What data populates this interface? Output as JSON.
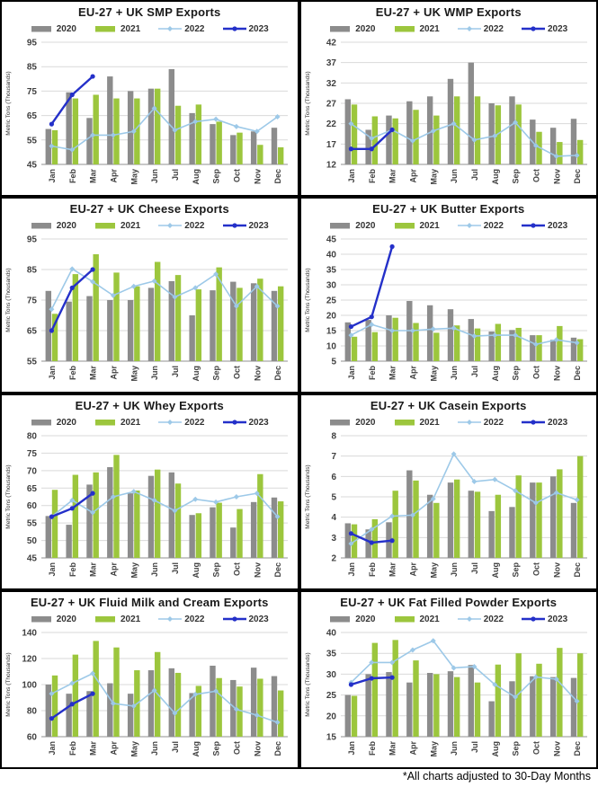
{
  "footer": {
    "note": "*All charts adjusted to 30-Day Months"
  },
  "colors": {
    "y2020": "#8C8C8C",
    "y2021": "#9CC63D",
    "y2022": "#9DC9E8",
    "y2023": "#2430C9",
    "grid": "#D9D9D9",
    "axis": "#A6A6A6",
    "text": "#404040",
    "title": "#1A1A1A"
  },
  "months": [
    "Jan",
    "Feb",
    "Mar",
    "Apr",
    "May",
    "Jun",
    "Jul",
    "Aug",
    "Sep",
    "Oct",
    "Nov",
    "Dec"
  ],
  "chart_data": [
    {
      "id": "smp",
      "type": "combo-bar-line",
      "title": "EU-27 + UK SMP Exports",
      "ylabel": "Metric Tons (Thousands)",
      "ylim": [
        45,
        95
      ],
      "ystep": 10,
      "grid": true,
      "legend_position": "top",
      "series": [
        {
          "name": "2020",
          "style": "bar",
          "color_key": "y2020",
          "values": [
            59.5,
            74.5,
            64,
            81,
            75,
            76,
            84,
            66,
            61.5,
            57,
            58.5,
            60
          ]
        },
        {
          "name": "2021",
          "style": "bar",
          "color_key": "y2021",
          "values": [
            59,
            72,
            73.5,
            72,
            72,
            76,
            69,
            69.5,
            62.5,
            58,
            53,
            52
          ]
        },
        {
          "name": "2022",
          "style": "line",
          "marker": "diamond",
          "color_key": "y2022",
          "values": [
            52.5,
            51,
            57,
            57,
            58.5,
            68,
            59,
            62.5,
            63.5,
            60.5,
            58.5,
            64.5
          ]
        },
        {
          "name": "2023",
          "style": "line",
          "marker": "circle",
          "color_key": "y2023",
          "values": [
            61.5,
            73.5,
            81,
            null,
            null,
            null,
            null,
            null,
            null,
            null,
            null,
            null
          ]
        }
      ]
    },
    {
      "id": "wmp",
      "type": "combo-bar-line",
      "title": "EU-27 + UK WMP Exports",
      "ylabel": "Metric Tons (Thousands)",
      "ylim": [
        12,
        42
      ],
      "ystep": 5,
      "grid": true,
      "legend_position": "top",
      "series": [
        {
          "name": "2020",
          "style": "bar",
          "color_key": "y2020",
          "values": [
            28,
            20.5,
            24,
            27.5,
            28.7,
            33,
            37,
            27,
            28.7,
            23,
            21,
            23.2
          ]
        },
        {
          "name": "2021",
          "style": "bar",
          "color_key": "y2021",
          "values": [
            26.7,
            23.8,
            23.3,
            25.4,
            24,
            28.7,
            28.7,
            26.5,
            26.7,
            20,
            17.5,
            18
          ]
        },
        {
          "name": "2022",
          "style": "line",
          "marker": "diamond",
          "color_key": "y2022",
          "values": [
            22,
            18.4,
            20.5,
            17.8,
            20.2,
            22,
            18,
            19,
            22.3,
            16.6,
            14,
            14.2
          ]
        },
        {
          "name": "2023",
          "style": "line",
          "marker": "circle",
          "color_key": "y2023",
          "values": [
            15.8,
            15.8,
            20.5,
            null,
            null,
            null,
            null,
            null,
            null,
            null,
            null,
            null
          ]
        }
      ]
    },
    {
      "id": "cheese",
      "type": "combo-bar-line",
      "title": "EU-27 + UK Cheese Exports",
      "ylabel": "Metric Tons (Thousands)",
      "ylim": [
        55,
        95
      ],
      "ystep": 10,
      "grid": true,
      "legend_position": "top",
      "series": [
        {
          "name": "2020",
          "style": "bar",
          "color_key": "y2020",
          "values": [
            78,
            74.5,
            76.3,
            75,
            75,
            79,
            81.2,
            70,
            78.2,
            81,
            80.5,
            78
          ]
        },
        {
          "name": "2021",
          "style": "bar",
          "color_key": "y2021",
          "values": [
            70.5,
            83.5,
            90,
            84,
            79.5,
            87.5,
            83.2,
            78.5,
            85.7,
            79,
            82,
            79.5
          ]
        },
        {
          "name": "2022",
          "style": "line",
          "marker": "diamond",
          "color_key": "y2022",
          "values": [
            72,
            85.2,
            81,
            76.5,
            79.5,
            81.2,
            76,
            79,
            83.5,
            73,
            79.5,
            73
          ]
        },
        {
          "name": "2023",
          "style": "line",
          "marker": "circle",
          "color_key": "y2023",
          "values": [
            65,
            79,
            85,
            null,
            null,
            null,
            null,
            null,
            null,
            null,
            null,
            null
          ]
        }
      ]
    },
    {
      "id": "butter",
      "type": "combo-bar-line",
      "title": "EU-27 + UK Butter Exports",
      "ylabel": "Metric Tons (Thousands)",
      "ylim": [
        5,
        45
      ],
      "ystep": 5,
      "grid": true,
      "legend_position": "top",
      "series": [
        {
          "name": "2020",
          "style": "bar",
          "color_key": "y2020",
          "values": [
            17.7,
            18.5,
            20,
            24.7,
            23.3,
            22,
            18.8,
            14.7,
            15.2,
            13.5,
            12,
            12.7
          ]
        },
        {
          "name": "2021",
          "style": "bar",
          "color_key": "y2021",
          "values": [
            13,
            14.5,
            19.2,
            17.5,
            14.3,
            16.7,
            15.7,
            17.2,
            15.9,
            13.5,
            16.5,
            12.2
          ]
        },
        {
          "name": "2022",
          "style": "line",
          "marker": "diamond",
          "color_key": "y2022",
          "values": [
            13.5,
            17,
            15,
            15,
            15.5,
            15.8,
            13.2,
            13.5,
            13.5,
            10.5,
            12,
            11
          ]
        },
        {
          "name": "2023",
          "style": "line",
          "marker": "circle",
          "color_key": "y2023",
          "values": [
            16.3,
            19.5,
            42.5,
            null,
            null,
            null,
            null,
            null,
            null,
            null,
            null,
            null
          ]
        }
      ]
    },
    {
      "id": "whey",
      "type": "combo-bar-line",
      "title": "EU-27 + UK Whey Exports",
      "ylabel": "Metric Tons (Thousands)",
      "ylim": [
        45,
        80
      ],
      "ystep": 5,
      "grid": true,
      "legend_position": "top",
      "series": [
        {
          "name": "2020",
          "style": "bar",
          "color_key": "y2020",
          "values": [
            57,
            54.5,
            66,
            71,
            63.5,
            68.5,
            69.5,
            57.3,
            59.5,
            53.7,
            61,
            62.3
          ]
        },
        {
          "name": "2021",
          "style": "bar",
          "color_key": "y2021",
          "values": [
            64.5,
            68.8,
            69.5,
            74.5,
            64.3,
            70.3,
            66.3,
            57.8,
            60.8,
            59,
            69,
            61.2
          ]
        },
        {
          "name": "2022",
          "style": "line",
          "marker": "diamond",
          "color_key": "y2022",
          "values": [
            56.8,
            61.5,
            58,
            62.5,
            64,
            61.5,
            58.5,
            61.8,
            61,
            62.5,
            63.5,
            56.8
          ]
        },
        {
          "name": "2023",
          "style": "line",
          "marker": "circle",
          "color_key": "y2023",
          "values": [
            56.8,
            59.2,
            63.5,
            null,
            null,
            null,
            null,
            null,
            null,
            null,
            null,
            null
          ]
        }
      ]
    },
    {
      "id": "casein",
      "type": "combo-bar-line",
      "title": "EU-27 + UK Casein Exports",
      "ylabel": "Metric Tons (Thousands)",
      "ylim": [
        2,
        8
      ],
      "ystep": 1,
      "grid": true,
      "legend_position": "top",
      "series": [
        {
          "name": "2020",
          "style": "bar",
          "color_key": "y2020",
          "values": [
            3.7,
            3.4,
            3.75,
            6.3,
            5.1,
            5.7,
            5.3,
            4.3,
            4.5,
            5.7,
            6.0,
            4.7
          ]
        },
        {
          "name": "2021",
          "style": "bar",
          "color_key": "y2021",
          "values": [
            3.65,
            3.9,
            5.3,
            5.8,
            4.7,
            5.85,
            5.25,
            5.1,
            6.05,
            5.7,
            6.35,
            7.0
          ]
        },
        {
          "name": "2022",
          "style": "line",
          "marker": "diamond",
          "color_key": "y2022",
          "values": [
            2.7,
            3.4,
            4.05,
            4.1,
            4.9,
            7.1,
            5.75,
            5.85,
            5.3,
            4.7,
            5.2,
            4.85
          ]
        },
        {
          "name": "2023",
          "style": "line",
          "marker": "circle",
          "color_key": "y2023",
          "values": [
            3.2,
            2.75,
            2.85,
            null,
            null,
            null,
            null,
            null,
            null,
            null,
            null,
            null
          ]
        }
      ]
    },
    {
      "id": "fluid-milk",
      "type": "combo-bar-line",
      "title": "EU-27 + UK Fluid Milk and Cream Exports",
      "ylabel": "Metric Tons (Thousands)",
      "ylim": [
        60,
        140
      ],
      "ystep": 20,
      "grid": true,
      "legend_position": "top",
      "series": [
        {
          "name": "2020",
          "style": "bar",
          "color_key": "y2020",
          "values": [
            100,
            93,
            95,
            101,
            93,
            111,
            112.5,
            93.5,
            114.5,
            103.5,
            113,
            106.5
          ]
        },
        {
          "name": "2021",
          "style": "bar",
          "color_key": "y2021",
          "values": [
            107,
            123,
            133.5,
            128.5,
            111,
            125,
            109,
            99,
            105,
            98.5,
            104.5,
            95.5
          ]
        },
        {
          "name": "2022",
          "style": "line",
          "marker": "diamond",
          "color_key": "y2022",
          "values": [
            93,
            101,
            108.5,
            85.5,
            83.5,
            95.5,
            78,
            92.5,
            95,
            81,
            76.5,
            71
          ]
        },
        {
          "name": "2023",
          "style": "line",
          "marker": "circle",
          "color_key": "y2023",
          "values": [
            74,
            85,
            93,
            null,
            null,
            null,
            null,
            null,
            null,
            null,
            null,
            null
          ]
        }
      ]
    },
    {
      "id": "fat-filled-powder",
      "type": "combo-bar-line",
      "title": "EU-27 + UK Fat Filled Powder Exports",
      "ylabel": "Metric Tons (Thousands)",
      "ylim": [
        15,
        40
      ],
      "ystep": 5,
      "grid": true,
      "legend_position": "top",
      "series": [
        {
          "name": "2020",
          "style": "bar",
          "color_key": "y2020",
          "values": [
            25,
            30,
            30.5,
            28,
            30.3,
            30.7,
            32.2,
            23.5,
            28.3,
            29.5,
            29.3,
            29.1
          ]
        },
        {
          "name": "2021",
          "style": "bar",
          "color_key": "y2021",
          "values": [
            24.8,
            37.5,
            38.2,
            33.3,
            30,
            29.3,
            28,
            32.3,
            35,
            32.5,
            36.3,
            35
          ]
        },
        {
          "name": "2022",
          "style": "line",
          "marker": "diamond",
          "color_key": "y2022",
          "values": [
            28,
            32.8,
            32.8,
            35.8,
            38,
            31.5,
            31.8,
            27.5,
            24.5,
            29.3,
            28.8,
            23.5
          ]
        },
        {
          "name": "2023",
          "style": "line",
          "marker": "circle",
          "color_key": "y2023",
          "values": [
            27.5,
            29,
            29.2,
            null,
            null,
            null,
            null,
            null,
            null,
            null,
            null,
            null
          ]
        }
      ]
    }
  ]
}
